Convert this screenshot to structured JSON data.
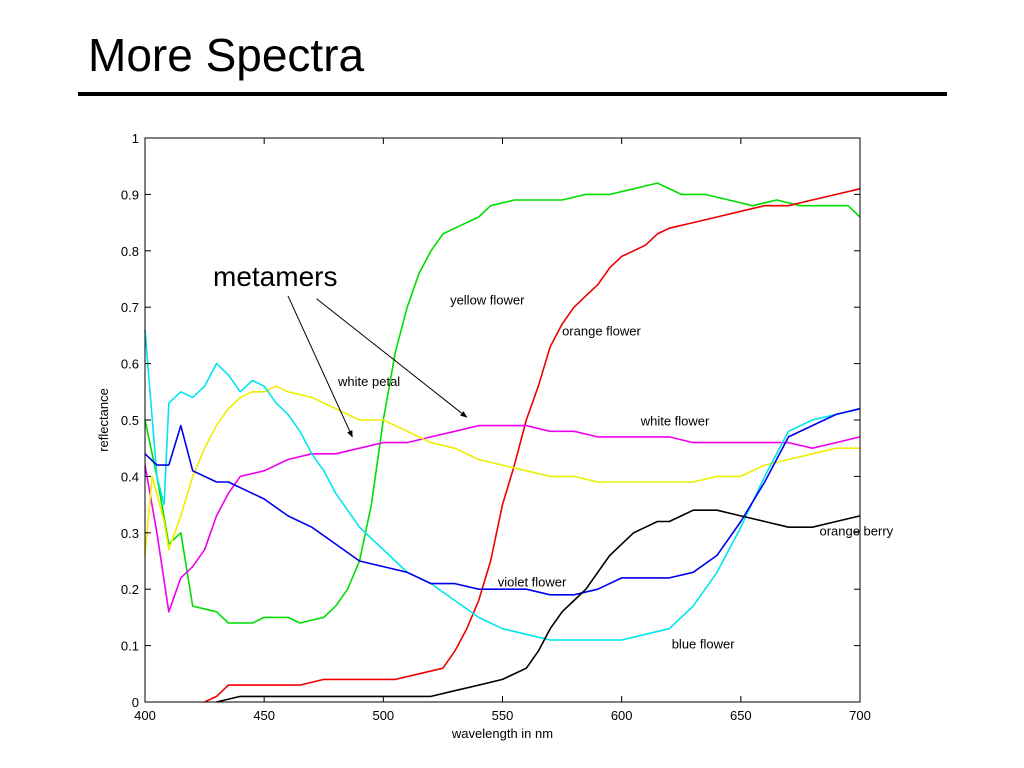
{
  "slide": {
    "title": "More Spectra"
  },
  "chart_data": {
    "type": "line",
    "xlabel": "wavelength in nm",
    "ylabel": "reflectance",
    "xlim": [
      400,
      700
    ],
    "ylim": [
      0,
      1
    ],
    "xticks": [
      400,
      450,
      500,
      550,
      600,
      650,
      700
    ],
    "yticks": [
      0,
      0.1,
      0.2,
      0.3,
      0.4,
      0.5,
      0.6,
      0.7,
      0.8,
      0.9,
      1
    ],
    "ytick_labels": [
      "0",
      "0.1",
      "0.2",
      "0.3",
      "0.4",
      "0.5",
      "0.6",
      "0.7",
      "0.8",
      "0.9",
      "1"
    ],
    "grid": false,
    "series": [
      {
        "name": "yellow flower",
        "color": "#00dd00",
        "points": [
          [
            400,
            0.5
          ],
          [
            405,
            0.4
          ],
          [
            410,
            0.28
          ],
          [
            415,
            0.3
          ],
          [
            420,
            0.17
          ],
          [
            430,
            0.16
          ],
          [
            435,
            0.14
          ],
          [
            445,
            0.14
          ],
          [
            450,
            0.15
          ],
          [
            460,
            0.15
          ],
          [
            465,
            0.14
          ],
          [
            475,
            0.15
          ],
          [
            480,
            0.17
          ],
          [
            485,
            0.2
          ],
          [
            490,
            0.25
          ],
          [
            495,
            0.35
          ],
          [
            500,
            0.5
          ],
          [
            505,
            0.62
          ],
          [
            510,
            0.7
          ],
          [
            515,
            0.76
          ],
          [
            520,
            0.8
          ],
          [
            525,
            0.83
          ],
          [
            530,
            0.84
          ],
          [
            540,
            0.86
          ],
          [
            545,
            0.88
          ],
          [
            555,
            0.89
          ],
          [
            565,
            0.89
          ],
          [
            575,
            0.89
          ],
          [
            585,
            0.9
          ],
          [
            595,
            0.9
          ],
          [
            605,
            0.91
          ],
          [
            615,
            0.92
          ],
          [
            625,
            0.9
          ],
          [
            635,
            0.9
          ],
          [
            645,
            0.89
          ],
          [
            655,
            0.88
          ],
          [
            665,
            0.89
          ],
          [
            675,
            0.88
          ],
          [
            685,
            0.88
          ],
          [
            695,
            0.88
          ],
          [
            700,
            0.86
          ]
        ]
      },
      {
        "name": "orange flower",
        "color": "#ee0000",
        "points": [
          [
            425,
            0
          ],
          [
            430,
            0.01
          ],
          [
            435,
            0.03
          ],
          [
            445,
            0.03
          ],
          [
            455,
            0.03
          ],
          [
            465,
            0.03
          ],
          [
            475,
            0.04
          ],
          [
            485,
            0.04
          ],
          [
            495,
            0.04
          ],
          [
            505,
            0.04
          ],
          [
            515,
            0.05
          ],
          [
            525,
            0.06
          ],
          [
            530,
            0.09
          ],
          [
            535,
            0.13
          ],
          [
            540,
            0.18
          ],
          [
            545,
            0.25
          ],
          [
            550,
            0.35
          ],
          [
            555,
            0.42
          ],
          [
            560,
            0.5
          ],
          [
            565,
            0.56
          ],
          [
            570,
            0.63
          ],
          [
            575,
            0.67
          ],
          [
            580,
            0.7
          ],
          [
            590,
            0.74
          ],
          [
            595,
            0.77
          ],
          [
            600,
            0.79
          ],
          [
            605,
            0.8
          ],
          [
            610,
            0.81
          ],
          [
            615,
            0.83
          ],
          [
            620,
            0.84
          ],
          [
            630,
            0.85
          ],
          [
            640,
            0.86
          ],
          [
            650,
            0.87
          ],
          [
            660,
            0.88
          ],
          [
            670,
            0.88
          ],
          [
            680,
            0.89
          ],
          [
            690,
            0.9
          ],
          [
            700,
            0.91
          ]
        ]
      },
      {
        "name": "white flower",
        "color": "#ee00ee",
        "points": [
          [
            400,
            0.42
          ],
          [
            405,
            0.3
          ],
          [
            410,
            0.16
          ],
          [
            415,
            0.22
          ],
          [
            420,
            0.24
          ],
          [
            425,
            0.27
          ],
          [
            430,
            0.33
          ],
          [
            435,
            0.37
          ],
          [
            440,
            0.4
          ],
          [
            450,
            0.41
          ],
          [
            460,
            0.43
          ],
          [
            470,
            0.44
          ],
          [
            480,
            0.44
          ],
          [
            490,
            0.45
          ],
          [
            500,
            0.46
          ],
          [
            510,
            0.46
          ],
          [
            520,
            0.47
          ],
          [
            530,
            0.48
          ],
          [
            540,
            0.49
          ],
          [
            550,
            0.49
          ],
          [
            560,
            0.49
          ],
          [
            570,
            0.48
          ],
          [
            580,
            0.48
          ],
          [
            590,
            0.47
          ],
          [
            600,
            0.47
          ],
          [
            610,
            0.47
          ],
          [
            620,
            0.47
          ],
          [
            630,
            0.46
          ],
          [
            640,
            0.46
          ],
          [
            650,
            0.46
          ],
          [
            660,
            0.46
          ],
          [
            670,
            0.46
          ],
          [
            680,
            0.45
          ],
          [
            690,
            0.46
          ],
          [
            700,
            0.47
          ]
        ]
      },
      {
        "name": "white petal",
        "color": "#eeee00",
        "points": [
          [
            400,
            0.26
          ],
          [
            403,
            0.4
          ],
          [
            408,
            0.32
          ],
          [
            410,
            0.27
          ],
          [
            415,
            0.33
          ],
          [
            420,
            0.4
          ],
          [
            425,
            0.45
          ],
          [
            430,
            0.49
          ],
          [
            435,
            0.52
          ],
          [
            440,
            0.54
          ],
          [
            445,
            0.55
          ],
          [
            450,
            0.55
          ],
          [
            455,
            0.56
          ],
          [
            460,
            0.55
          ],
          [
            470,
            0.54
          ],
          [
            480,
            0.52
          ],
          [
            490,
            0.5
          ],
          [
            500,
            0.5
          ],
          [
            510,
            0.48
          ],
          [
            520,
            0.46
          ],
          [
            530,
            0.45
          ],
          [
            540,
            0.43
          ],
          [
            550,
            0.42
          ],
          [
            560,
            0.41
          ],
          [
            570,
            0.4
          ],
          [
            580,
            0.4
          ],
          [
            590,
            0.39
          ],
          [
            600,
            0.39
          ],
          [
            610,
            0.39
          ],
          [
            620,
            0.39
          ],
          [
            630,
            0.39
          ],
          [
            640,
            0.4
          ],
          [
            650,
            0.4
          ],
          [
            660,
            0.42
          ],
          [
            670,
            0.43
          ],
          [
            680,
            0.44
          ],
          [
            690,
            0.45
          ],
          [
            700,
            0.45
          ]
        ]
      },
      {
        "name": "blue flower",
        "color": "#00e5ee",
        "points": [
          [
            400,
            0.66
          ],
          [
            405,
            0.4
          ],
          [
            408,
            0.35
          ],
          [
            410,
            0.53
          ],
          [
            415,
            0.55
          ],
          [
            420,
            0.54
          ],
          [
            425,
            0.56
          ],
          [
            430,
            0.6
          ],
          [
            435,
            0.58
          ],
          [
            440,
            0.55
          ],
          [
            445,
            0.57
          ],
          [
            450,
            0.56
          ],
          [
            455,
            0.53
          ],
          [
            460,
            0.51
          ],
          [
            465,
            0.48
          ],
          [
            470,
            0.44
          ],
          [
            475,
            0.41
          ],
          [
            480,
            0.37
          ],
          [
            485,
            0.34
          ],
          [
            490,
            0.31
          ],
          [
            495,
            0.29
          ],
          [
            500,
            0.27
          ],
          [
            505,
            0.25
          ],
          [
            510,
            0.23
          ],
          [
            520,
            0.21
          ],
          [
            530,
            0.18
          ],
          [
            540,
            0.15
          ],
          [
            550,
            0.13
          ],
          [
            560,
            0.12
          ],
          [
            570,
            0.11
          ],
          [
            580,
            0.11
          ],
          [
            590,
            0.11
          ],
          [
            600,
            0.11
          ],
          [
            610,
            0.12
          ],
          [
            620,
            0.13
          ],
          [
            630,
            0.17
          ],
          [
            640,
            0.23
          ],
          [
            650,
            0.31
          ],
          [
            660,
            0.4
          ],
          [
            670,
            0.48
          ],
          [
            680,
            0.5
          ],
          [
            690,
            0.51
          ],
          [
            700,
            0.52
          ]
        ]
      },
      {
        "name": "violet flower",
        "color": "#0000ee",
        "points": [
          [
            400,
            0.44
          ],
          [
            405,
            0.42
          ],
          [
            410,
            0.42
          ],
          [
            415,
            0.49
          ],
          [
            420,
            0.41
          ],
          [
            425,
            0.4
          ],
          [
            430,
            0.39
          ],
          [
            435,
            0.39
          ],
          [
            440,
            0.38
          ],
          [
            450,
            0.36
          ],
          [
            460,
            0.33
          ],
          [
            470,
            0.31
          ],
          [
            480,
            0.28
          ],
          [
            490,
            0.25
          ],
          [
            500,
            0.24
          ],
          [
            510,
            0.23
          ],
          [
            520,
            0.21
          ],
          [
            530,
            0.21
          ],
          [
            540,
            0.2
          ],
          [
            550,
            0.2
          ],
          [
            560,
            0.2
          ],
          [
            570,
            0.19
          ],
          [
            580,
            0.19
          ],
          [
            590,
            0.2
          ],
          [
            600,
            0.22
          ],
          [
            610,
            0.22
          ],
          [
            620,
            0.22
          ],
          [
            630,
            0.23
          ],
          [
            640,
            0.26
          ],
          [
            650,
            0.32
          ],
          [
            660,
            0.39
          ],
          [
            670,
            0.47
          ],
          [
            680,
            0.49
          ],
          [
            690,
            0.51
          ],
          [
            700,
            0.52
          ]
        ]
      },
      {
        "name": "orange berry",
        "color": "#000000",
        "points": [
          [
            430,
            0
          ],
          [
            440,
            0.01
          ],
          [
            450,
            0.01
          ],
          [
            460,
            0.01
          ],
          [
            470,
            0.01
          ],
          [
            480,
            0.01
          ],
          [
            490,
            0.01
          ],
          [
            500,
            0.01
          ],
          [
            510,
            0.01
          ],
          [
            520,
            0.01
          ],
          [
            530,
            0.02
          ],
          [
            540,
            0.03
          ],
          [
            550,
            0.04
          ],
          [
            560,
            0.06
          ],
          [
            565,
            0.09
          ],
          [
            570,
            0.13
          ],
          [
            575,
            0.16
          ],
          [
            580,
            0.18
          ],
          [
            585,
            0.2
          ],
          [
            590,
            0.23
          ],
          [
            595,
            0.26
          ],
          [
            600,
            0.28
          ],
          [
            605,
            0.3
          ],
          [
            610,
            0.31
          ],
          [
            615,
            0.32
          ],
          [
            620,
            0.32
          ],
          [
            625,
            0.33
          ],
          [
            630,
            0.34
          ],
          [
            640,
            0.34
          ],
          [
            650,
            0.33
          ],
          [
            660,
            0.32
          ],
          [
            670,
            0.31
          ],
          [
            680,
            0.31
          ],
          [
            690,
            0.32
          ],
          [
            700,
            0.33
          ]
        ]
      }
    ],
    "labels": [
      {
        "text": "yellow flower",
        "x": 528,
        "y": 0.705
      },
      {
        "text": "orange flower",
        "x": 575,
        "y": 0.65
      },
      {
        "text": "white petal",
        "x": 481,
        "y": 0.56
      },
      {
        "text": "white flower",
        "x": 608,
        "y": 0.49
      },
      {
        "text": "orange berry",
        "x": 683,
        "y": 0.295
      },
      {
        "text": "violet flower",
        "x": 548,
        "y": 0.205
      },
      {
        "text": "blue flower",
        "x": 621,
        "y": 0.095
      }
    ],
    "annotation": {
      "text": "metamers",
      "arrows": [
        {
          "from": [
            460,
            0.72
          ],
          "to": [
            487,
            0.47
          ]
        },
        {
          "from": [
            472,
            0.715
          ],
          "to": [
            535,
            0.505
          ]
        }
      ]
    }
  }
}
